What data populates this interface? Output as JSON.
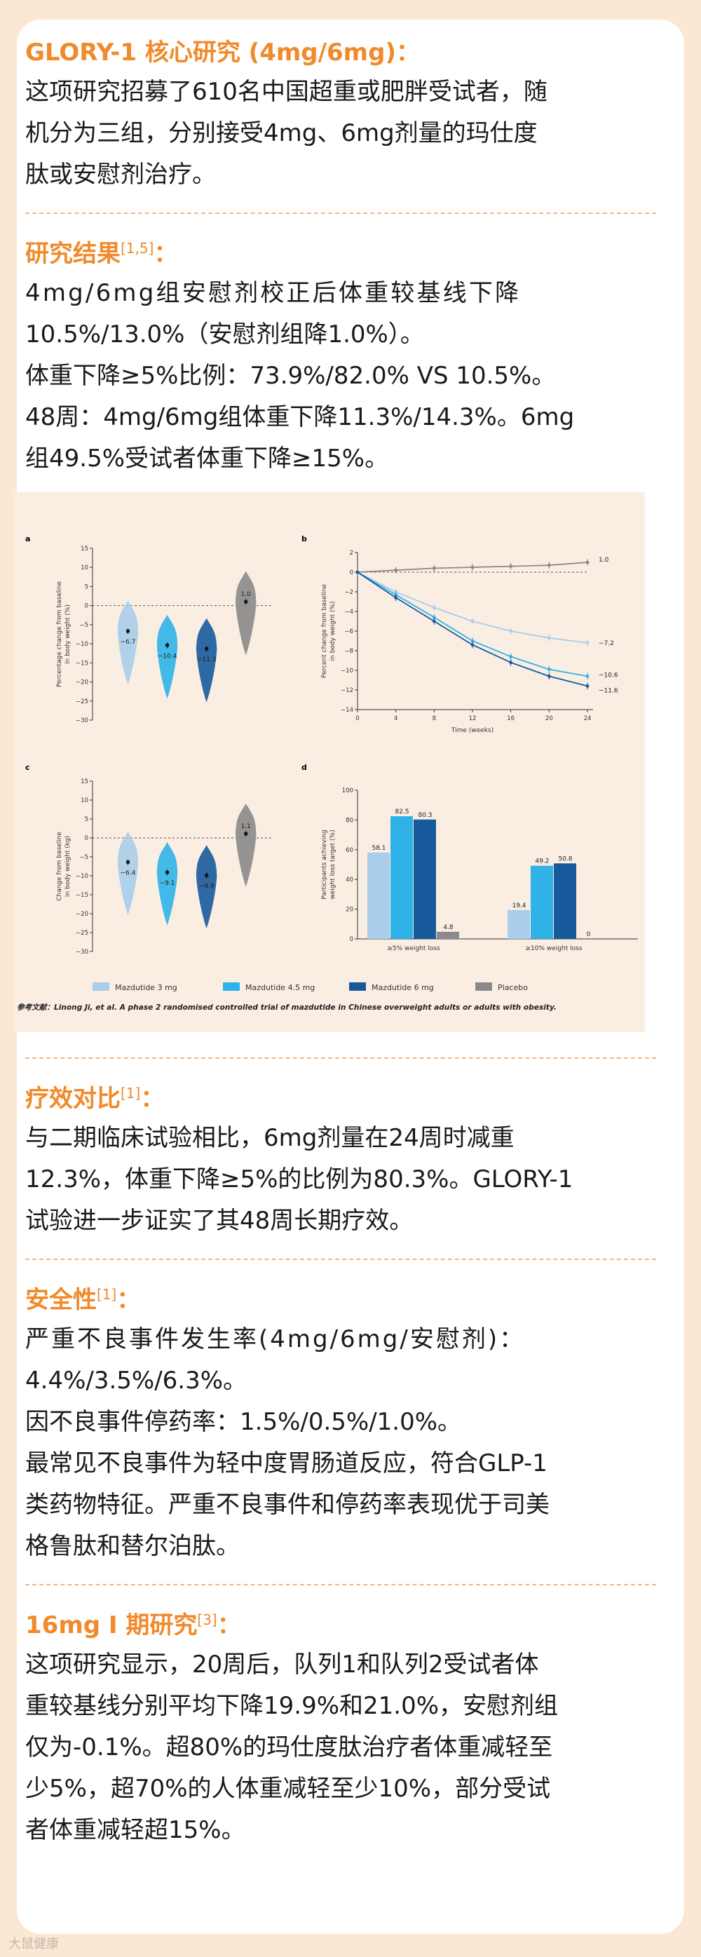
{
  "section1": {
    "title": "GLORY-1 核心研究 (4mg/6mg)：",
    "lines": [
      "这项研究招募了610名中国超重或肥胖受试者，随",
      "机分为三组，分别接受4mg、6mg剂量的玛仕度",
      "肽或安慰剂治疗。"
    ]
  },
  "section2": {
    "title": "研究结果",
    "sup": "[1,5]",
    "colon": "：",
    "lines": [
      "4mg/6mg组安慰剂校正后体重较基线下降",
      "10.5%/13.0%（安慰剂组降1.0%）。",
      "体重下降≥5%比例：73.9%/82.0% VS 10.5%。",
      "48周：4mg/6mg组体重下降11.3%/14.3%。6mg",
      "组49.5%受试者体重下降≥15%。"
    ]
  },
  "figure": {
    "panel_labels": [
      "a",
      "b",
      "c",
      "d"
    ],
    "legend": [
      "Mazdutide 3 mg",
      "Mazdutide 4.5 mg",
      "Mazdutide 6 mg",
      "Placebo"
    ],
    "reference": "参考文献：Linong Ji, et al. A phase 2 randomised controlled trial of mazdutide in Chinese overweight adults or adults with obesity."
  },
  "colors": {
    "series": [
      "#a9cdea",
      "#2fb2e8",
      "#175a9c",
      "#8a8a8a"
    ],
    "accent": "#f08a2a"
  },
  "chart_data": [
    {
      "type": "violin",
      "panel": "a",
      "ylabel": "Percentage change from baseline in body weight (%)",
      "ylim": [
        -30,
        15
      ],
      "yticks": [
        15,
        10,
        5,
        0,
        -5,
        -10,
        -15,
        -20,
        -25,
        -30
      ],
      "series": [
        "Mazdutide 3 mg",
        "Mazdutide 4.5 mg",
        "Mazdutide 6 mg",
        "Placebo"
      ],
      "values": [
        -6.7,
        -10.4,
        -11.3,
        1.0
      ],
      "labels": [
        "−6.7",
        "−10.4",
        "−11.3",
        "1.0"
      ]
    },
    {
      "type": "line",
      "panel": "b",
      "ylabel": "Percent change from baseline in body weight (%)",
      "xlabel": "Time  (weeks)",
      "x": [
        0,
        4,
        8,
        12,
        16,
        20,
        24
      ],
      "ylim": [
        -14,
        2
      ],
      "yticks": [
        2,
        0,
        -2,
        -4,
        -6,
        -8,
        -10,
        -12,
        -14
      ],
      "series": [
        {
          "name": "Placebo",
          "values": [
            0,
            0.2,
            0.4,
            0.5,
            0.6,
            0.7,
            1.0
          ]
        },
        {
          "name": "Mazdutide 3 mg",
          "values": [
            0,
            -2.0,
            -3.6,
            -5.0,
            -6.0,
            -6.7,
            -7.2
          ]
        },
        {
          "name": "Mazdutide 4.5 mg",
          "values": [
            0,
            -2.3,
            -4.6,
            -7.0,
            -8.6,
            -9.9,
            -10.6
          ]
        },
        {
          "name": "Mazdutide 6 mg",
          "values": [
            0,
            -2.6,
            -5.0,
            -7.4,
            -9.2,
            -10.6,
            -11.6
          ]
        }
      ],
      "end_labels": [
        "1.0",
        "−7.2",
        "−10.6",
        "−11.6"
      ]
    },
    {
      "type": "violin",
      "panel": "c",
      "ylabel": "Change from baseline in body weight (kg)",
      "ylim": [
        -30,
        15
      ],
      "yticks": [
        15,
        10,
        5,
        0,
        -5,
        -10,
        -15,
        -20,
        -25,
        -30
      ],
      "series": [
        "Mazdutide 3 mg",
        "Mazdutide 4.5 mg",
        "Mazdutide 6 mg",
        "Placebo"
      ],
      "values": [
        -6.4,
        -9.1,
        -9.9,
        1.1
      ],
      "labels": [
        "−6.4",
        "−9.1",
        "−9.9",
        "1.1"
      ]
    },
    {
      "type": "bar",
      "panel": "d",
      "ylabel": "Participants achieving weight loss target (%)",
      "ylim": [
        0,
        100
      ],
      "yticks": [
        0,
        20,
        40,
        60,
        80,
        100
      ],
      "categories": [
        "≥5% weight loss",
        "≥10% weight loss"
      ],
      "series": [
        {
          "name": "Mazdutide 3 mg",
          "values": [
            58.1,
            19.4
          ]
        },
        {
          "name": "Mazdutide 4.5 mg",
          "values": [
            82.5,
            49.2
          ]
        },
        {
          "name": "Mazdutide 6 mg",
          "values": [
            80.3,
            50.8
          ]
        },
        {
          "name": "Placebo",
          "values": [
            4.8,
            0
          ]
        }
      ]
    }
  ],
  "section3": {
    "title": "疗效对比",
    "sup": "[1]",
    "colon": "：",
    "lines": [
      "与二期临床试验相比，6mg剂量在24周时减重",
      "12.3%，体重下降≥5%的比例为80.3%。GLORY-1",
      "试验进一步证实了其48周长期疗效。"
    ]
  },
  "section4": {
    "title": "安全性",
    "sup": "[1]",
    "colon": "：",
    "lines": [
      "严重不良事件发生率(4mg/6mg/安慰剂)：",
      "4.4%/3.5%/6.3%。",
      "因不良事件停药率：1.5%/0.5%/1.0%。",
      "最常见不良事件为轻中度胃肠道反应，符合GLP-1",
      "类药物特征。严重不良事件和停药率表现优于司美",
      "格鲁肽和替尔泊肽。"
    ]
  },
  "section5": {
    "title": "16mg Ⅰ 期研究",
    "sup": "[3]",
    "colon": "：",
    "lines": [
      "这项研究显示，20周后，队列1和队列2受试者体",
      "重较基线分别平均下降19.9%和21.0%，安慰剂组",
      "仅为-0.1%。超80%的玛仕度肽治疗者体重减轻至",
      "少5%，超70%的人体重减轻至少10%，部分受试",
      "者体重减轻超15%。"
    ]
  },
  "watermark": "大鼠健康"
}
